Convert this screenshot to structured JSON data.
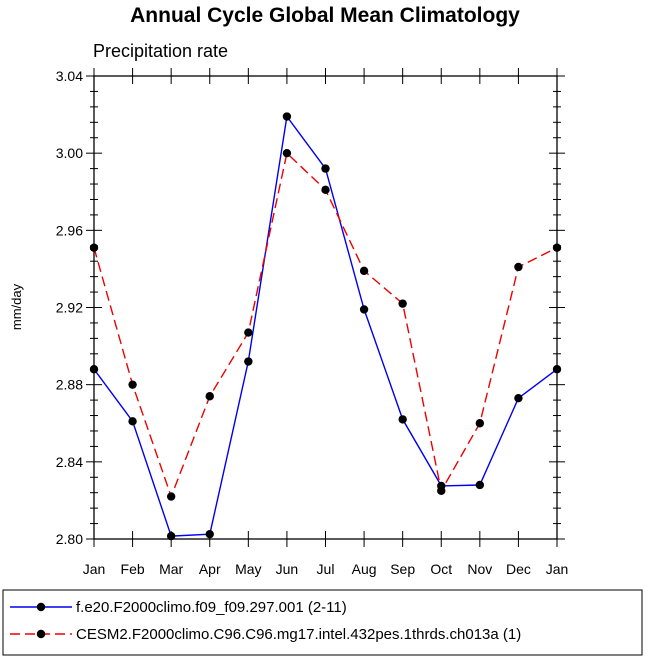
{
  "chart_data": {
    "type": "line",
    "title": "Annual Cycle Global Mean Climatology",
    "subtitle": "Precipitation rate",
    "xlabel": "",
    "ylabel": "mm/day",
    "categories": [
      "Jan",
      "Feb",
      "Mar",
      "Apr",
      "May",
      "Jun",
      "Jul",
      "Aug",
      "Sep",
      "Oct",
      "Nov",
      "Dec",
      "Jan"
    ],
    "ylim": [
      2.8,
      3.04
    ],
    "yticks": [
      "2.80",
      "2.84",
      "2.88",
      "2.92",
      "2.96",
      "3.00",
      "3.04"
    ],
    "grid": false,
    "legend_position": "bottom",
    "series": [
      {
        "name": "f.e20.F2000climo.f09_f09.297.001 (2-11)",
        "color": "#0000ee",
        "style": "solid",
        "values": [
          2.888,
          2.861,
          2.8015,
          2.8025,
          2.892,
          3.019,
          2.992,
          2.919,
          2.862,
          2.8275,
          2.828,
          2.873,
          2.888
        ]
      },
      {
        "name": "CESM2.F2000climo.C96.C96.mg17.intel.432pes.1thrds.ch013a (1)",
        "color": "#ee0000",
        "style": "dashed",
        "values": [
          2.951,
          2.88,
          2.822,
          2.874,
          2.907,
          3.0,
          2.981,
          2.939,
          2.922,
          2.825,
          2.86,
          2.941,
          2.951
        ]
      }
    ]
  }
}
